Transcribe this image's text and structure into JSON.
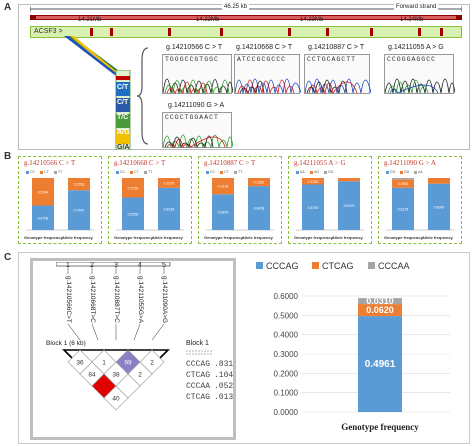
{
  "panel_labels": {
    "a": "A",
    "b": "B",
    "c": "C"
  },
  "genome": {
    "span_label": "46.25 kb",
    "strand_label": "Forward strand",
    "positions": [
      "14.21Mb",
      "14.22Mb",
      "14.23Mb",
      "14.24Mb"
    ],
    "gene_label": "ACSF3 >"
  },
  "genotype_markers": [
    "C/T",
    "C/T",
    "T/C",
    "A/G",
    "G/A"
  ],
  "traces": [
    {
      "title": "g.14210566 C > T",
      "seq": "TGGGCCGTGGC"
    },
    {
      "title": "g.14210668 C > T",
      "seq": "ATCCGCGCCC"
    },
    {
      "title": "g.14210887 C > T",
      "seq": "CCTGCAGCTT"
    },
    {
      "title": "g.14211055 A > G",
      "seq": "CCGGGAGGCC"
    },
    {
      "title": "g.14211090 G > A",
      "seq": "CCGCTGGAACT"
    }
  ],
  "freq_charts": [
    {
      "title": "g.14210566 C > T",
      "legend": [
        "CC",
        "CT",
        "TT"
      ],
      "xlabels": [
        "Genotype frequency",
        "Allele frequency"
      ],
      "stacks": [
        [
          0.4706,
          0.5294,
          0.0
        ],
        [
          0.7647,
          0.2353
        ]
      ]
    },
    {
      "title": "g.14210668 C > T",
      "legend": [
        "CC",
        "CT",
        "TT"
      ],
      "xlabels": [
        "Genotype frequency",
        "Allele frequency"
      ],
      "stacks": [
        [
          0.625,
          0.375,
          0.0
        ],
        [
          0.8125,
          0.1875
        ]
      ]
    },
    {
      "title": "g.14210887 C > T",
      "legend": [
        "CC",
        "CT",
        "TT"
      ],
      "xlabels": [
        "Genotype frequency",
        "Allele frequency"
      ],
      "stacks": [
        [
          0.6875,
          0.3125,
          0.0
        ],
        [
          0.8438,
          0.1562
        ]
      ]
    },
    {
      "title": "g.14211055 A > G",
      "legend": [
        "AA",
        "AG",
        "GG"
      ],
      "xlabels": [
        "Genotype frequency",
        "Allele frequency"
      ],
      "stacks": [
        [
          0.875,
          0.125,
          0.0
        ],
        [
          0.9375,
          0.0625
        ]
      ]
    },
    {
      "title": "g.14211090 G > A",
      "legend": [
        "GG",
        "GA",
        "AA"
      ],
      "xlabels": [
        "Genotype frequency",
        "Allele frequency"
      ],
      "stacks": [
        [
          0.8125,
          0.1563,
          0.0312
        ],
        [
          0.8906,
          0.1094
        ]
      ]
    }
  ],
  "ld_plot": {
    "snp_numbers": [
      "1",
      "2",
      "3",
      "4",
      "5"
    ],
    "snp_labels": [
      "g.14210566C>T",
      "g.14210668T>C",
      "g.14210887T>C",
      "g.14211055G>A",
      "g.14211090A>G"
    ],
    "block_title": "Block 1 (6 kb)",
    "block_side_label": "Block 1",
    "cells": [
      {
        "row": 0,
        "col": 0,
        "value": "36",
        "color": "#ffffff"
      },
      {
        "row": 0,
        "col": 1,
        "value": "1",
        "color": "#ffffff"
      },
      {
        "row": 0,
        "col": 2,
        "value": "99",
        "color": "#8a80c8"
      },
      {
        "row": 0,
        "col": 3,
        "value": "2",
        "color": "#ffffff"
      },
      {
        "row": 1,
        "col": 0,
        "value": "84",
        "color": "#ffffff"
      },
      {
        "row": 1,
        "col": 1,
        "value": "38",
        "color": "#ffffff"
      },
      {
        "row": 1,
        "col": 2,
        "value": "2",
        "color": "#ffffff"
      },
      {
        "row": 2,
        "col": 0,
        "value": "",
        "color": "#e00000"
      },
      {
        "row": 2,
        "col": 1,
        "value": "",
        "color": "#ffffff"
      },
      {
        "row": 3,
        "col": 0,
        "value": "40",
        "color": "#ffffff"
      }
    ],
    "haplotypes": [
      {
        "seq": "CCCAG",
        "freq": ".831"
      },
      {
        "seq": "CTCAG",
        "freq": ".104"
      },
      {
        "seq": "CCCAA",
        "freq": ".052"
      },
      {
        "seq": "CTCAG",
        "freq": ".013"
      }
    ]
  },
  "chart_data": {
    "type": "bar",
    "stacked": true,
    "categories": [
      "Genotype frequency"
    ],
    "series": [
      {
        "name": "CCCAG",
        "values": [
          0.4961
        ],
        "color": "#5b9bd5"
      },
      {
        "name": "CTCAG",
        "values": [
          0.062
        ],
        "color": "#ed7d31"
      },
      {
        "name": "CCCAA",
        "values": [
          0.031
        ],
        "color": "#a5a5a5"
      }
    ],
    "data_labels": [
      "0.4961",
      "0.0620",
      "0.0310"
    ],
    "xlabel": "Genotype frequency",
    "ylabel": "",
    "ylim": [
      0,
      0.6
    ],
    "yticks": [
      "0.0000",
      "0.1000",
      "0.2000",
      "0.3000",
      "0.4000",
      "0.5000",
      "0.6000"
    ],
    "legend": "top",
    "grid": true
  }
}
